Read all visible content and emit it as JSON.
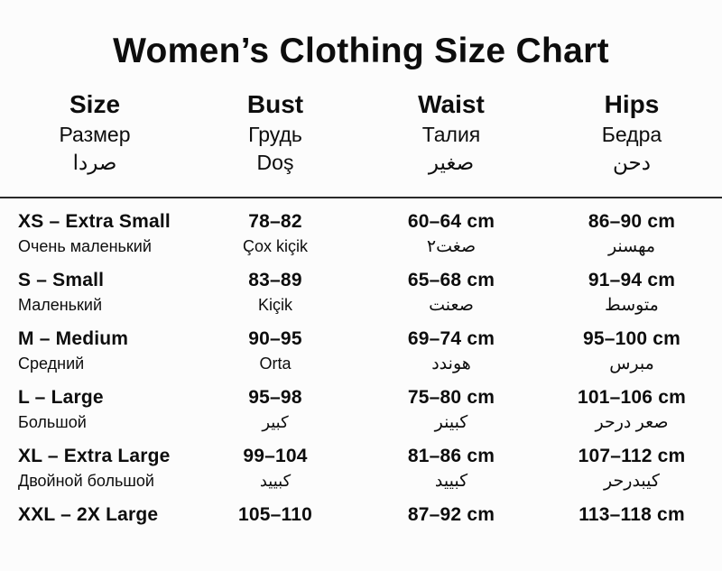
{
  "title": "Women’s Clothing Size Chart",
  "table": {
    "columns": [
      {
        "en": "Size",
        "ru": "Размер",
        "ar": "صردا"
      },
      {
        "en": "Bust",
        "ru": "Грудь",
        "ar": "Doş"
      },
      {
        "en": "Waist",
        "ru": "Талия",
        "ar": "صغير"
      },
      {
        "en": "Hips",
        "ru": "Бедра",
        "ar": "دحن"
      }
    ],
    "rows": [
      {
        "size": "XS – Extra Small",
        "size_sub": "Очень маленький",
        "bust": "78–82",
        "bust_sub": "Çox kiçik",
        "waist": "60–64 cm",
        "waist_sub": "صغت٢",
        "hips": "86–90 cm",
        "hips_sub": "مهسنر"
      },
      {
        "size": "S – Small",
        "size_sub": "Маленький",
        "bust": "83–89",
        "bust_sub": "Kiçik",
        "waist": "65–68 cm",
        "waist_sub": "صعنت",
        "hips": "91–94 cm",
        "hips_sub": "متوسط"
      },
      {
        "size": "M – Medium",
        "size_sub": "Средний",
        "bust": "90–95",
        "bust_sub": "Orta",
        "waist": "69–74 cm",
        "waist_sub": "هوندد",
        "hips": "95–100 cm",
        "hips_sub": "مبرس"
      },
      {
        "size": "L – Large",
        "size_sub": "Большой",
        "bust": "95–98",
        "bust_sub": "كبير",
        "waist": "75–80 cm",
        "waist_sub": "كبينر",
        "hips": "101–106 cm",
        "hips_sub": "صعر درحر"
      },
      {
        "size": "XL – Extra Large",
        "size_sub": "Двойной большой",
        "bust": "99–104",
        "bust_sub": "كبييد",
        "waist": "81–86 cm",
        "waist_sub": "كبييد",
        "hips": "107–112 cm",
        "hips_sub": "كيبدرحر"
      },
      {
        "size": "XXL – 2X Large",
        "size_sub": "",
        "bust": "105–110",
        "bust_sub": "",
        "waist": "87–92 cm",
        "waist_sub": "",
        "hips": "113–118 cm",
        "hips_sub": ""
      }
    ]
  }
}
